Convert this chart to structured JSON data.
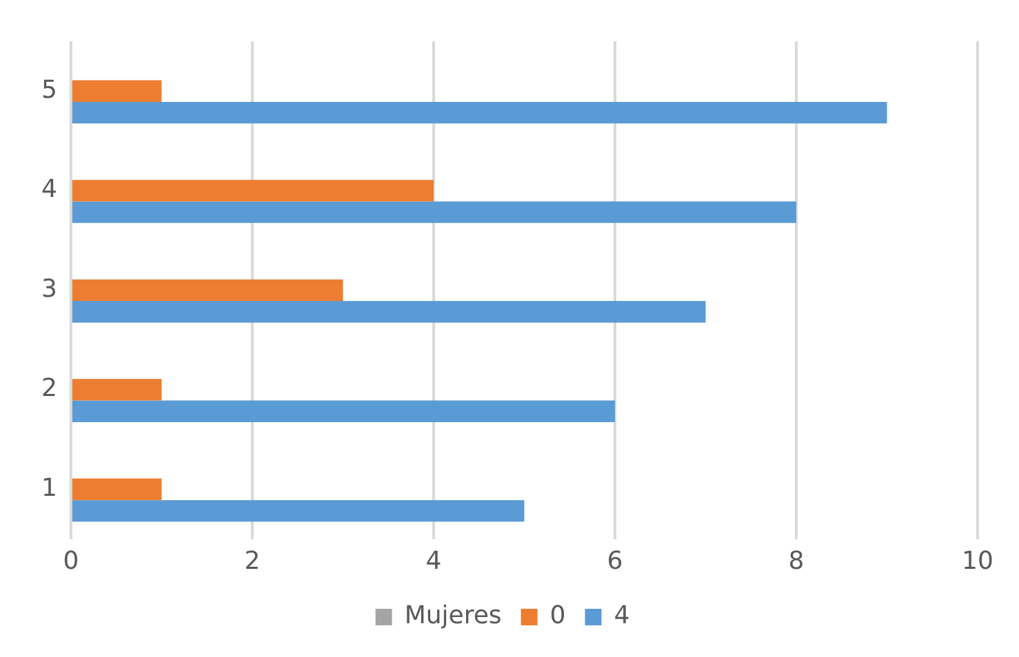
{
  "chart_data": {
    "type": "bar",
    "orientation": "horizontal",
    "categories": [
      "5",
      "4",
      "3",
      "2",
      "1"
    ],
    "series": [
      {
        "name": "Mujeres",
        "color": "#a5a5a5",
        "values": [
          null,
          null,
          null,
          null,
          null
        ]
      },
      {
        "name": "0",
        "color": "#ed7d31",
        "values": [
          1,
          4,
          3,
          1,
          1
        ]
      },
      {
        "name": "4",
        "color": "#5b9bd5",
        "values": [
          9,
          8,
          7,
          6,
          5
        ]
      }
    ],
    "xlim": [
      0,
      10
    ],
    "xticks": [
      0,
      2,
      4,
      6,
      8,
      10
    ],
    "grid": "x",
    "legend": "bottom"
  }
}
